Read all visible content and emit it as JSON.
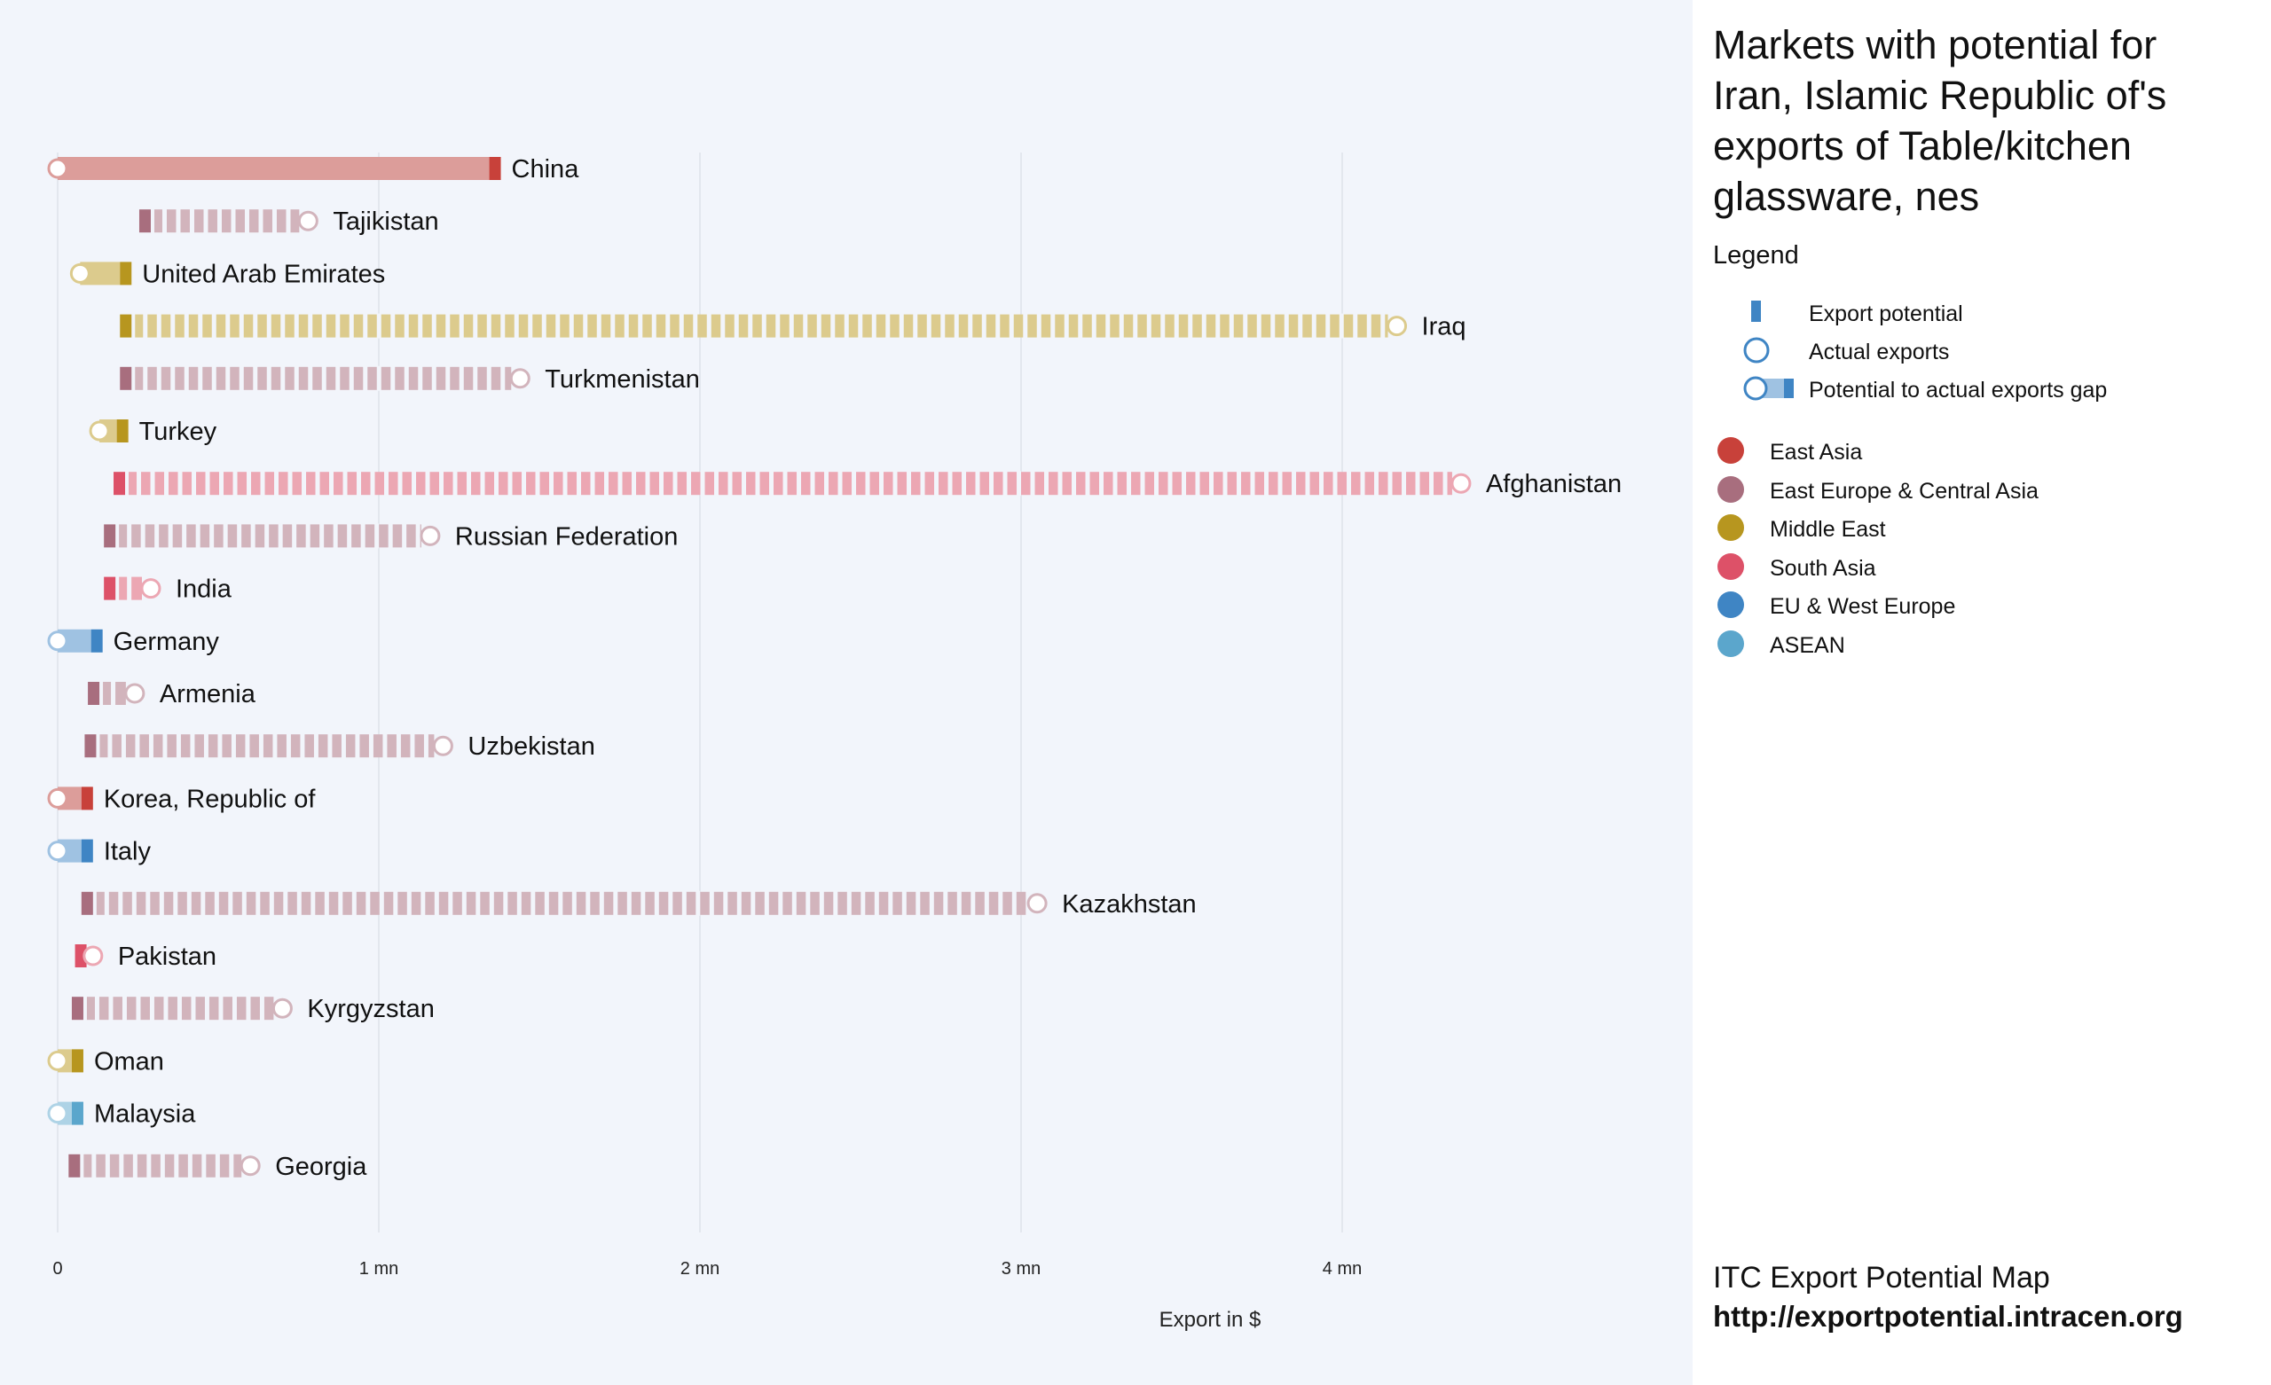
{
  "chart_data": {
    "type": "bar",
    "title": "Markets with potential for Iran, Islamic Republic of's exports of Table/kitchen glassware, nes",
    "xlabel": "Export in $",
    "x_ticks": [
      0,
      1000000,
      2000000,
      3000000,
      4000000
    ],
    "x_tick_labels": [
      "0",
      "1 mn",
      "2 mn",
      "3 mn",
      "4 mn"
    ],
    "xlim": [
      0,
      4850000
    ],
    "grid": true,
    "legend_placement": "right",
    "legend_title": "Legend",
    "legend_symbols": [
      {
        "kind": "potential",
        "label": "Export potential"
      },
      {
        "kind": "actual",
        "label": "Actual exports"
      },
      {
        "kind": "gap",
        "label": "Potential to actual exports gap"
      }
    ],
    "regions": [
      {
        "name": "East Asia",
        "color": "#c8413a",
        "light": "#dc9d9a"
      },
      {
        "name": "East Europe & Central Asia",
        "color": "#a86e7e",
        "light": "#d2b4bc"
      },
      {
        "name": "Middle East",
        "color": "#b7961f",
        "light": "#dccb8d"
      },
      {
        "name": "South Asia",
        "color": "#dd5168",
        "light": "#eca7b3"
      },
      {
        "name": "EU & West Europe",
        "color": "#3f85c4",
        "light": "#9fc2e2"
      },
      {
        "name": "ASEAN",
        "color": "#5ba6cc",
        "light": "#aed3e6"
      }
    ],
    "series": [
      {
        "name": "China",
        "region": "East Asia",
        "potential": 1380000,
        "actual": 0
      },
      {
        "name": "Tajikistan",
        "region": "East Europe & Central Asia",
        "potential": 290000,
        "actual": 780000
      },
      {
        "name": "United Arab Emirates",
        "region": "Middle East",
        "potential": 230000,
        "actual": 70000
      },
      {
        "name": "Iraq",
        "region": "Middle East",
        "potential": 230000,
        "actual": 4170000
      },
      {
        "name": "Turkmenistan",
        "region": "East Europe & Central Asia",
        "potential": 230000,
        "actual": 1440000
      },
      {
        "name": "Turkey",
        "region": "Middle East",
        "potential": 220000,
        "actual": 130000
      },
      {
        "name": "Afghanistan",
        "region": "South Asia",
        "potential": 210000,
        "actual": 4370000
      },
      {
        "name": "Russian Federation",
        "region": "East Europe & Central Asia",
        "potential": 180000,
        "actual": 1160000
      },
      {
        "name": "India",
        "region": "South Asia",
        "potential": 180000,
        "actual": 290000
      },
      {
        "name": "Germany",
        "region": "EU & West Europe",
        "potential": 140000,
        "actual": 0
      },
      {
        "name": "Armenia",
        "region": "East Europe & Central Asia",
        "potential": 130000,
        "actual": 240000
      },
      {
        "name": "Uzbekistan",
        "region": "East Europe & Central Asia",
        "potential": 120000,
        "actual": 1200000
      },
      {
        "name": "Korea, Republic of",
        "region": "East Asia",
        "potential": 110000,
        "actual": 0
      },
      {
        "name": "Italy",
        "region": "EU & West Europe",
        "potential": 110000,
        "actual": 0
      },
      {
        "name": "Kazakhstan",
        "region": "East Europe & Central Asia",
        "potential": 110000,
        "actual": 3050000
      },
      {
        "name": "Pakistan",
        "region": "South Asia",
        "potential": 90000,
        "actual": 110000
      },
      {
        "name": "Kyrgyzstan",
        "region": "East Europe & Central Asia",
        "potential": 80000,
        "actual": 700000
      },
      {
        "name": "Oman",
        "region": "Middle East",
        "potential": 80000,
        "actual": 0
      },
      {
        "name": "Malaysia",
        "region": "ASEAN",
        "potential": 80000,
        "actual": 0
      },
      {
        "name": "Georgia",
        "region": "East Europe & Central Asia",
        "potential": 70000,
        "actual": 600000
      }
    ]
  },
  "footer": {
    "line1": "ITC Export Potential Map",
    "line2": "http://exportpotential.intracen.org"
  }
}
